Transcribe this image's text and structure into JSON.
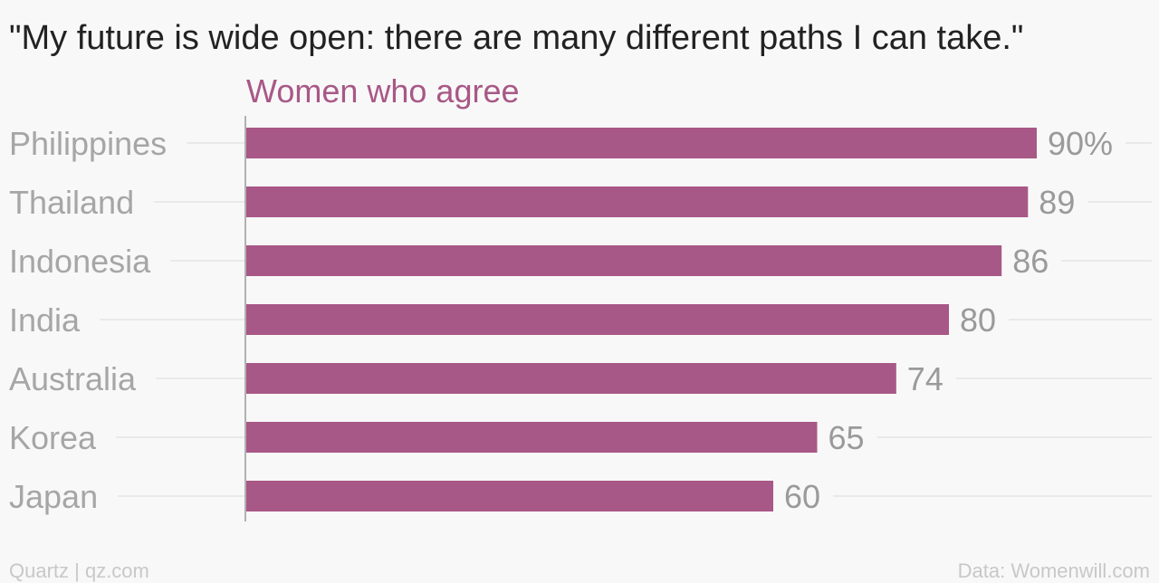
{
  "chart_data": {
    "type": "bar",
    "orientation": "horizontal",
    "title": "\"My future is wide open: there are many different paths I can take.\"",
    "series": [
      {
        "name": "Women who agree",
        "values": [
          90,
          89,
          86,
          80,
          74,
          65,
          60
        ],
        "value_labels": [
          "90%",
          "89",
          "86",
          "80",
          "74",
          "65",
          "60"
        ]
      }
    ],
    "categories": [
      "Philippines",
      "Thailand",
      "Indonesia",
      "India",
      "Australia",
      "Korea",
      "Japan"
    ],
    "xlim": [
      0,
      100
    ],
    "unit": "%",
    "grid": true,
    "colors": {
      "bar": "#a85886",
      "series_label": "#a85886"
    }
  },
  "footer": {
    "source_left": "Quartz | qz.com",
    "source_right": "Data: Womenwill.com"
  }
}
